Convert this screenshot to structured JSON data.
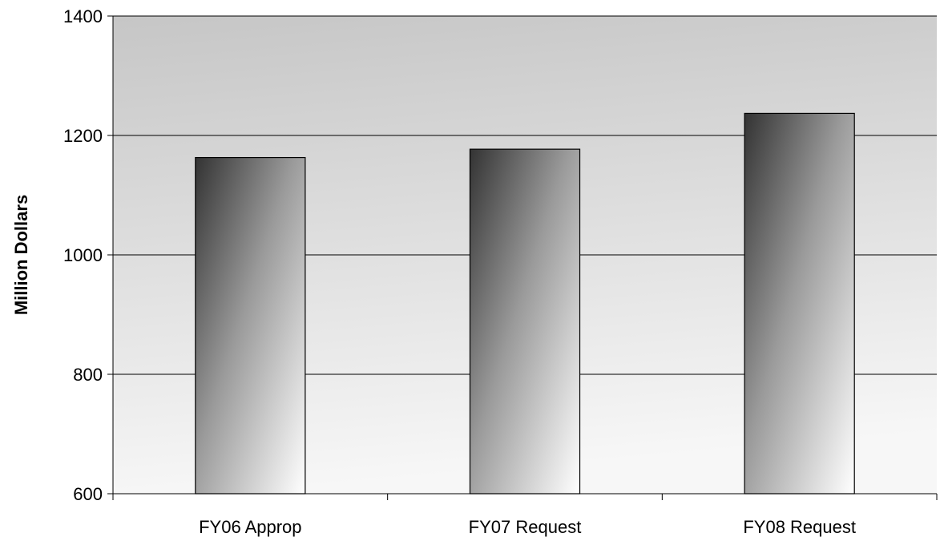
{
  "chart_data": {
    "type": "bar",
    "categories": [
      "FY06 Approp",
      "FY07 Request",
      "FY08 Request"
    ],
    "values": [
      1163,
      1177,
      1237
    ],
    "ylabel": "Million Dollars",
    "xlabel": "",
    "ylim": [
      600,
      1400
    ],
    "yticks": [
      600,
      800,
      1000,
      1200,
      1400
    ],
    "grid": true,
    "legend": "none",
    "colors": {
      "plot_bg_top": "#c6c6c6",
      "plot_bg_bottom": "#f7f7f7",
      "bar_dark": "#333333",
      "bar_light": "#ffffff",
      "gridline": "#000000"
    }
  }
}
